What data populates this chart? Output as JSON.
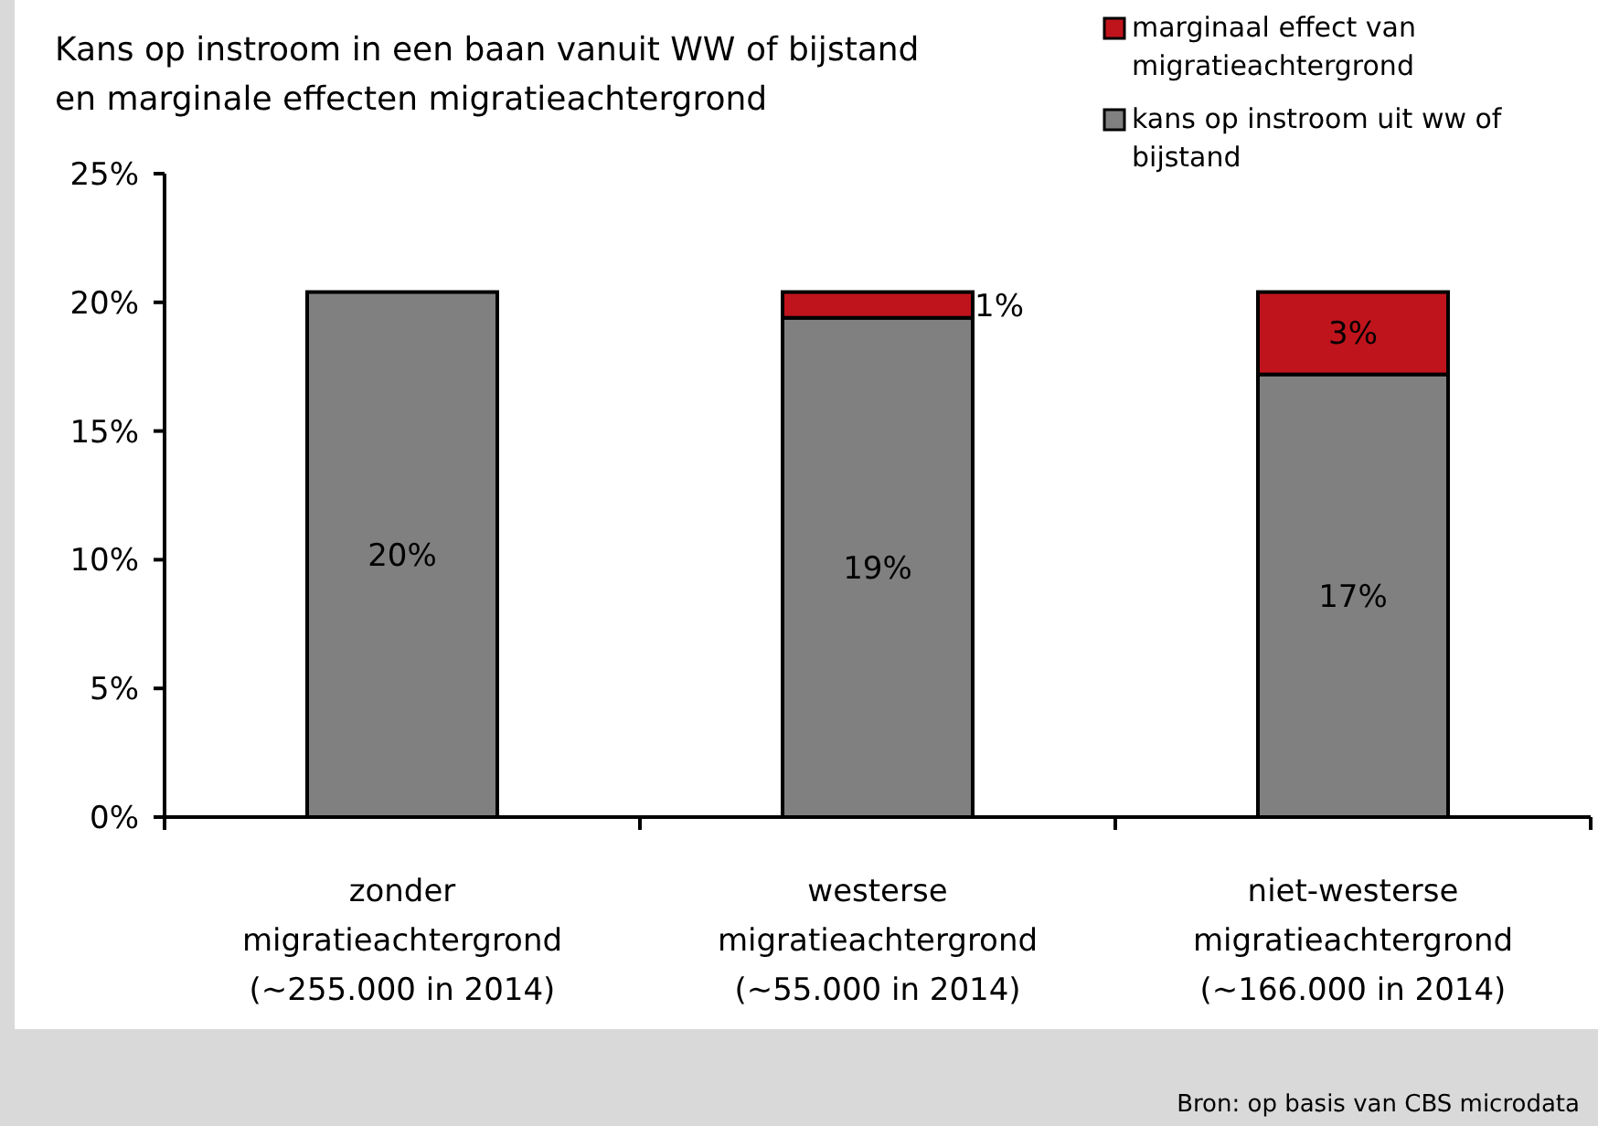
{
  "chart_data": {
    "type": "bar",
    "stacked": true,
    "title": "Kans op instroom in een baan vanuit WW of bijstand\nen marginale effecten migratieachtergrond",
    "categories": [
      "zonder\nmigratieachtergrond\n(~255.000 in 2014)",
      "westerse\nmigratieachtergrond\n(~55.000 in 2014)",
      "niet-westerse\nmigratieachtergrond\n(~166.000 in 2014)"
    ],
    "series": [
      {
        "name": "kans op instroom uit ww of\nbijstand",
        "color": "#808080",
        "values": [
          20.4,
          19.4,
          17.2
        ],
        "value_labels": [
          "20%",
          "19%",
          "17%"
        ]
      },
      {
        "name": "marginaal effect van\nmigratieachtergrond",
        "color": "#c0141c",
        "values": [
          null,
          1.0,
          3.2
        ],
        "value_labels": [
          null,
          "1%",
          "3%"
        ]
      }
    ],
    "ylim": [
      0,
      25
    ],
    "yticks": [
      {
        "value": 0,
        "label": "0%"
      },
      {
        "value": 5,
        "label": "5%"
      },
      {
        "value": 10,
        "label": "10%"
      },
      {
        "value": 15,
        "label": "15%"
      },
      {
        "value": 20,
        "label": "20%"
      },
      {
        "value": 25,
        "label": "25%"
      }
    ],
    "grid": false,
    "legend": "top right",
    "annotations": [
      "Bron: op basis van CBS microdata"
    ]
  }
}
